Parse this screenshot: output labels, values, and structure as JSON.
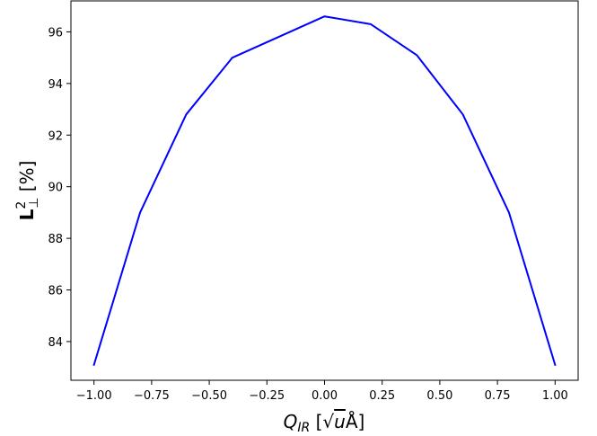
{
  "chart_data": {
    "type": "line",
    "title": "",
    "xlabel": {
      "main": "Q",
      "sub": "IR",
      "units_open": " [√",
      "units_var": "u",
      "units_close": "Å]"
    },
    "ylabel": {
      "main": "L",
      "sup": "2",
      "sub": "⊥",
      "units": " [%]"
    },
    "xlim": [
      -1.1,
      1.1
    ],
    "ylim": [
      82.5,
      97.2
    ],
    "xticks": [
      -1.0,
      -0.75,
      -0.5,
      -0.25,
      0.0,
      0.25,
      0.5,
      0.75,
      1.0
    ],
    "xtick_labels": [
      "−1.00",
      "−0.75",
      "−0.50",
      "−0.25",
      "0.00",
      "0.25",
      "0.50",
      "0.75",
      "1.00"
    ],
    "yticks": [
      84,
      86,
      88,
      90,
      92,
      94,
      96
    ],
    "ytick_labels": [
      "84",
      "86",
      "88",
      "90",
      "92",
      "94",
      "96"
    ],
    "grid": false,
    "series": [
      {
        "color": "#0000ff",
        "x": [
          -1.0,
          -0.8,
          -0.6,
          -0.4,
          -0.2,
          0.0,
          0.2,
          0.4,
          0.6,
          0.8,
          1.0
        ],
        "y": [
          83.1,
          89.0,
          92.8,
          95.0,
          95.8,
          96.6,
          96.3,
          95.1,
          92.8,
          89.0,
          83.1
        ]
      }
    ]
  }
}
